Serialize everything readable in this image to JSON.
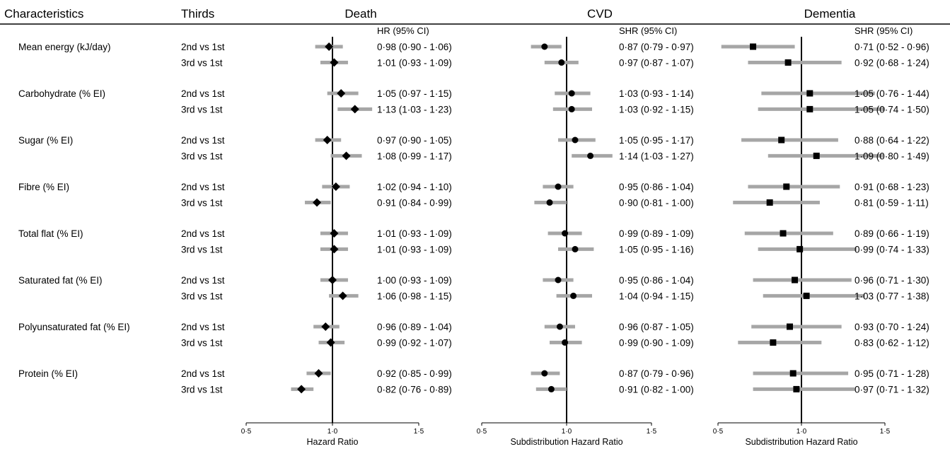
{
  "headers": {
    "characteristics": "Characteristics",
    "thirds": "Thirds"
  },
  "chart_data": {
    "type": "forest",
    "rows": [
      {
        "characteristic": "Mean energy (kJ/day)",
        "comparisons": [
          "2nd vs 1st",
          "3rd vs 1st"
        ]
      },
      {
        "characteristic": "Carbohydrate (% EI)",
        "comparisons": [
          "2nd vs 1st",
          "3rd vs 1st"
        ]
      },
      {
        "characteristic": "Sugar (% EI)",
        "comparisons": [
          "2nd vs 1st",
          "3rd vs 1st"
        ]
      },
      {
        "characteristic": "Fibre (% EI)",
        "comparisons": [
          "2nd vs 1st",
          "3rd vs 1st"
        ]
      },
      {
        "characteristic": "Total flat (% EI)",
        "comparisons": [
          "2nd vs 1st",
          "3rd vs 1st"
        ]
      },
      {
        "characteristic": "Saturated fat (% EI)",
        "comparisons": [
          "2nd vs 1st",
          "3rd vs 1st"
        ]
      },
      {
        "characteristic": "Polyunsaturated fat (% EI)",
        "comparisons": [
          "2nd vs 1st",
          "3rd vs 1st"
        ]
      },
      {
        "characteristic": "Protein (% EI)",
        "comparisons": [
          "2nd vs 1st",
          "3rd vs 1st"
        ]
      }
    ],
    "panels": [
      {
        "title": "Death",
        "estimate_header": "HR (95% CI)",
        "xlabel": "Hazard Ratio",
        "marker": "diamond",
        "xlim": [
          0.5,
          1.5
        ],
        "ticks": [
          "0·5",
          "1·0",
          "1·5"
        ],
        "tick_values": [
          0.5,
          1.0,
          1.5
        ],
        "reference": 1.0,
        "values": [
          [
            0.98,
            0.9,
            1.06
          ],
          [
            1.01,
            0.93,
            1.09
          ],
          [
            1.05,
            0.97,
            1.15
          ],
          [
            1.13,
            1.03,
            1.23
          ],
          [
            0.97,
            0.9,
            1.05
          ],
          [
            1.08,
            0.99,
            1.17
          ],
          [
            1.02,
            0.94,
            1.1
          ],
          [
            0.91,
            0.84,
            0.99
          ],
          [
            1.01,
            0.93,
            1.09
          ],
          [
            1.01,
            0.93,
            1.09
          ],
          [
            1.0,
            0.93,
            1.09
          ],
          [
            1.06,
            0.98,
            1.15
          ],
          [
            0.96,
            0.89,
            1.04
          ],
          [
            0.99,
            0.92,
            1.07
          ],
          [
            0.92,
            0.85,
            0.99
          ],
          [
            0.82,
            0.76,
            0.89
          ]
        ],
        "labels": [
          "0·98 (0·90 - 1·06)",
          "1·01 (0·93 - 1·09)",
          "1·05 (0·97 - 1·15)",
          "1·13 (1·03 - 1·23)",
          "0·97 (0·90 - 1·05)",
          "1·08 (0·99 - 1·17)",
          "1·02 (0·94 - 1·10)",
          "0·91 (0·84 - 0·99)",
          "1·01 (0·93 - 1·09)",
          "1·01 (0·93 - 1·09)",
          "1·00 (0·93 - 1·09)",
          "1·06 (0·98 - 1·15)",
          "0·96 (0·89 - 1·04)",
          "0·99 (0·92 - 1·07)",
          "0·92 (0·85 - 0·99)",
          "0·82 (0·76 - 0·89)"
        ]
      },
      {
        "title": "CVD",
        "estimate_header": "SHR (95% CI)",
        "xlabel": "Subdistribution Hazard Ratio",
        "marker": "circle",
        "xlim": [
          0.5,
          1.5
        ],
        "ticks": [
          "0·5",
          "1·0",
          "1·5"
        ],
        "tick_values": [
          0.5,
          1.0,
          1.5
        ],
        "reference": 1.0,
        "values": [
          [
            0.87,
            0.79,
            0.97
          ],
          [
            0.97,
            0.87,
            1.07
          ],
          [
            1.03,
            0.93,
            1.14
          ],
          [
            1.03,
            0.92,
            1.15
          ],
          [
            1.05,
            0.95,
            1.17
          ],
          [
            1.14,
            1.03,
            1.27
          ],
          [
            0.95,
            0.86,
            1.04
          ],
          [
            0.9,
            0.81,
            1.0
          ],
          [
            0.99,
            0.89,
            1.09
          ],
          [
            1.05,
            0.95,
            1.16
          ],
          [
            0.95,
            0.86,
            1.04
          ],
          [
            1.04,
            0.94,
            1.15
          ],
          [
            0.96,
            0.87,
            1.05
          ],
          [
            0.99,
            0.9,
            1.09
          ],
          [
            0.87,
            0.79,
            0.96
          ],
          [
            0.91,
            0.82,
            1.0
          ]
        ],
        "labels": [
          "0·87 (0·79 - 0·97)",
          "0·97 (0·87 - 1·07)",
          "1·03 (0·93 - 1·14)",
          "1·03 (0·92 - 1·15)",
          "1·05 (0·95 - 1·17)",
          "1·14 (1·03 - 1·27)",
          "0·95 (0·86 - 1·04)",
          "0·90 (0·81 - 1·00)",
          "0·99 (0·89 - 1·09)",
          "1·05 (0·95 - 1·16)",
          "0·95 (0·86 - 1·04)",
          "1·04 (0·94 - 1·15)",
          "0·96 (0·87 - 1·05)",
          "0·99 (0·90 - 1·09)",
          "0·87 (0·79 - 0·96)",
          "0·91 (0·82 - 1·00)"
        ]
      },
      {
        "title": "Dementia",
        "estimate_header": "SHR (95% CI)",
        "xlabel": "Subdistribution Hazard Ratio",
        "marker": "square",
        "xlim": [
          0.5,
          1.5
        ],
        "ticks": [
          "0·5",
          "1·0",
          "1·5"
        ],
        "tick_values": [
          0.5,
          1.0,
          1.5
        ],
        "reference": 1.0,
        "values": [
          [
            0.71,
            0.52,
            0.96
          ],
          [
            0.92,
            0.68,
            1.24
          ],
          [
            1.05,
            0.76,
            1.44
          ],
          [
            1.05,
            0.74,
            1.5
          ],
          [
            0.88,
            0.64,
            1.22
          ],
          [
            1.09,
            0.8,
            1.49
          ],
          [
            0.91,
            0.68,
            1.23
          ],
          [
            0.81,
            0.59,
            1.11
          ],
          [
            0.89,
            0.66,
            1.19
          ],
          [
            0.99,
            0.74,
            1.33
          ],
          [
            0.96,
            0.71,
            1.3
          ],
          [
            1.03,
            0.77,
            1.38
          ],
          [
            0.93,
            0.7,
            1.24
          ],
          [
            0.83,
            0.62,
            1.12
          ],
          [
            0.95,
            0.71,
            1.28
          ],
          [
            0.97,
            0.71,
            1.32
          ]
        ],
        "labels": [
          "0·71 (0·52 - 0·96)",
          "0·92 (0·68 - 1·24)",
          "1·05 (0·76 - 1·44)",
          "1·05 (0·74 - 1·50)",
          "0·88 (0·64 - 1·22)",
          "1·09 (0·80 - 1·49)",
          "0·91 (0·68 - 1·23)",
          "0·81 (0·59 - 1·11)",
          "0·89 (0·66 - 1·19)",
          "0·99 (0·74 - 1·33)",
          "0·96 (0·71 - 1·30)",
          "1·03 (0·77 - 1·38)",
          "0·93 (0·70 - 1·24)",
          "0·83 (0·62 - 1·12)",
          "0·95 (0·71 - 1·28)",
          "0·97 (0·71 - 1·32)"
        ]
      }
    ],
    "colors": {
      "ci": "#a6a6a6",
      "marker": "#000000",
      "reference": "#000000"
    }
  }
}
